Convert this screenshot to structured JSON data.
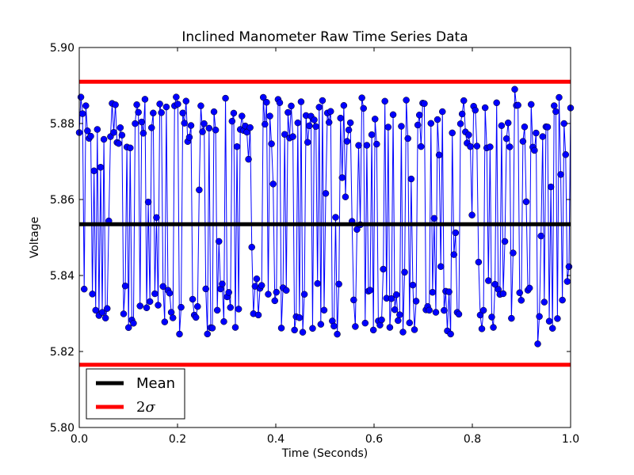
{
  "chart_data": {
    "type": "line",
    "title": "Inclined Manometer Raw Time Series Data",
    "xlabel": "Time (Seconds)",
    "ylabel": "Voltage",
    "xlim": [
      0,
      1
    ],
    "ylim": [
      5.8,
      5.9
    ],
    "xticks": [
      "0.0",
      "0.2",
      "0.4",
      "0.6",
      "0.8",
      "1.0"
    ],
    "yticks": [
      "5.80",
      "5.82",
      "5.84",
      "5.86",
      "5.88",
      "5.90"
    ],
    "grid": false,
    "legend_position": "bottom-left",
    "colors": {
      "data": "#0000ff",
      "mean": "#000000",
      "sigma": "#ff0000"
    },
    "series": [
      {
        "name": "",
        "marker": "circle",
        "num_points": 300,
        "approx_min": 5.822,
        "approx_max": 5.889,
        "shown": "dense noisy voltage samples oscillating between about 5.825 and 5.885"
      },
      {
        "name": "Mean",
        "value": 5.8535
      },
      {
        "name": "2σ",
        "legend_label_parts": [
          "2",
          "σ"
        ],
        "lower": 5.8165,
        "upper": 5.891
      }
    ]
  }
}
